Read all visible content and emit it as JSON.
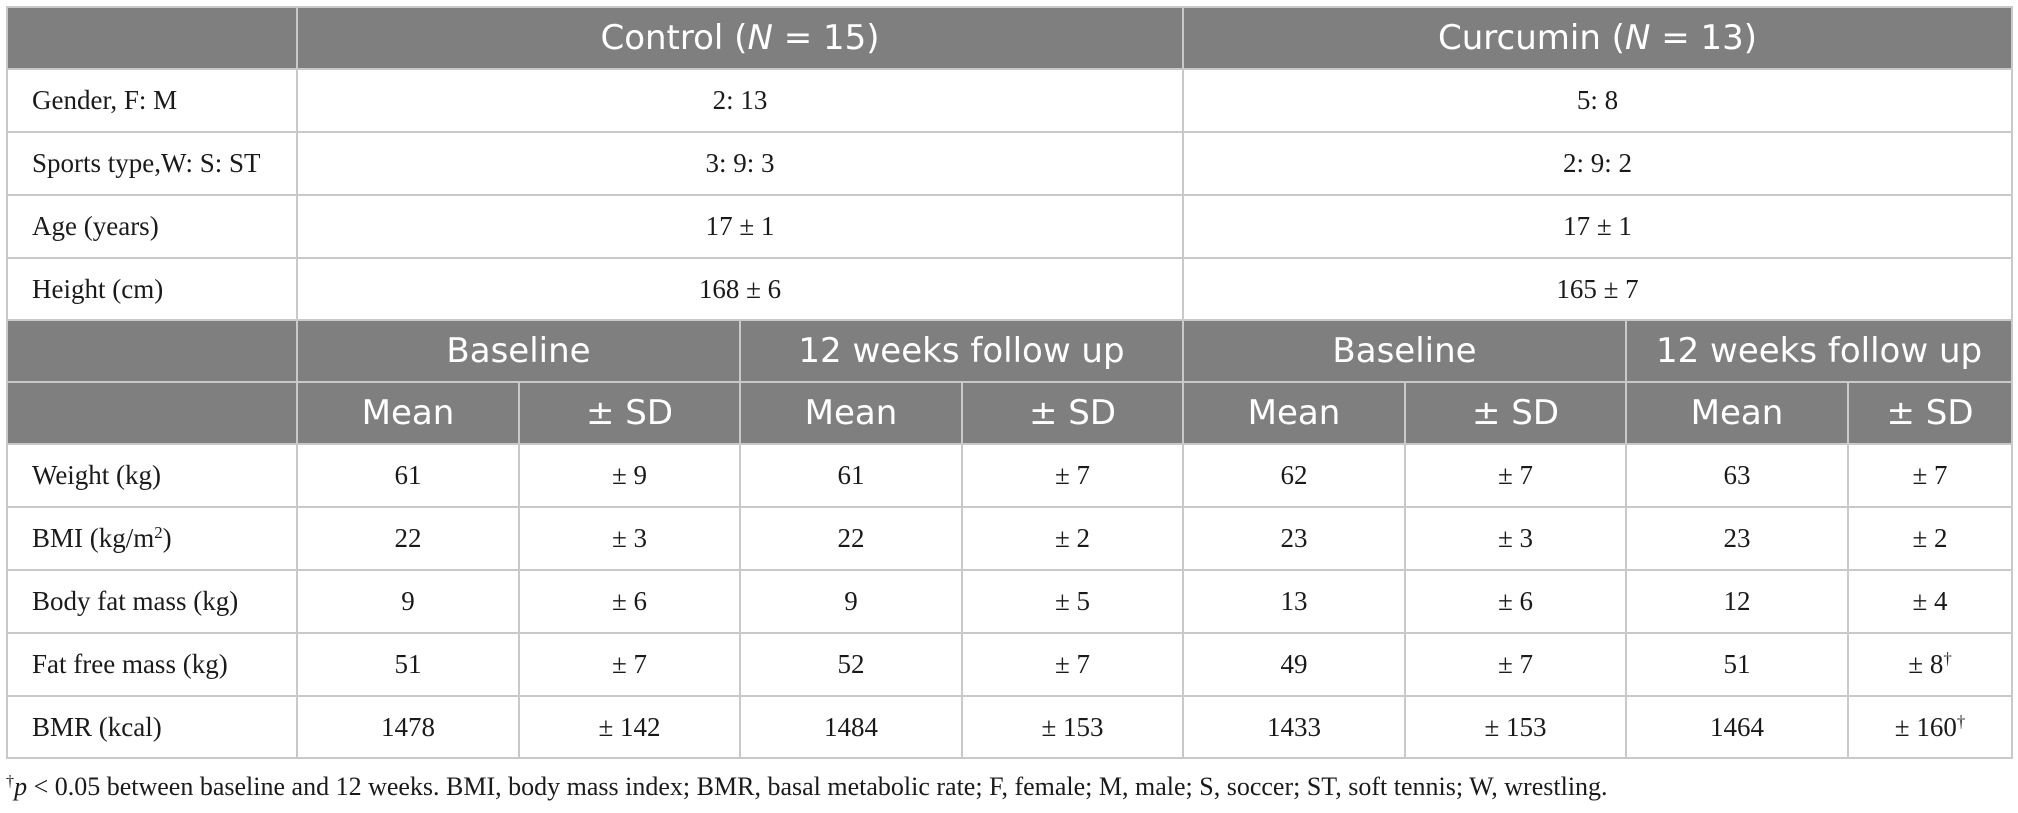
{
  "groups": {
    "control": {
      "name": "Control (",
      "n_label": "N",
      "n_value": " = 15)"
    },
    "curcumin": {
      "name": "Curcumin (",
      "n_label": "N",
      "n_value": " = 13)"
    }
  },
  "demographics": [
    {
      "label": "Gender, F: M",
      "control": "2: 13",
      "curcumin": "5: 8"
    },
    {
      "label": "Sports type,W: S: ST",
      "control": "3: 9: 3",
      "curcumin": "2: 9: 2"
    },
    {
      "label": "Age (years)",
      "control": "17 ± 1",
      "curcumin": "17 ± 1"
    },
    {
      "label": "Height (cm)",
      "control": "168 ± 6",
      "curcumin": "165 ± 7"
    }
  ],
  "timepoints": {
    "baseline": "Baseline",
    "followup": "12 weeks follow up"
  },
  "stats": {
    "mean": "Mean",
    "sd": "± SD"
  },
  "measures": [
    {
      "label": "Weight (kg)",
      "label_sup": "",
      "label_after": "",
      "values": [
        "61",
        "± 9",
        "61",
        "± 7",
        "62",
        "± 7",
        "63",
        "± 7"
      ]
    },
    {
      "label": "BMI (kg/m",
      "label_sup": "2",
      "label_after": ")",
      "values": [
        "22",
        "± 3",
        "22",
        "± 2",
        "23",
        "± 3",
        "23",
        "± 2"
      ]
    },
    {
      "label": "Body fat mass (kg)",
      "label_sup": "",
      "label_after": "",
      "values": [
        "9",
        "± 6",
        "9",
        "± 5",
        "13",
        "± 6",
        "12",
        "± 4"
      ]
    },
    {
      "label": "Fat free mass (kg)",
      "label_sup": "",
      "label_after": "",
      "values": [
        "51",
        "± 7",
        "52",
        "± 7",
        "49",
        "± 7",
        "51",
        "± 8"
      ]
    },
    {
      "label": "BMR (kcal)",
      "label_sup": "",
      "label_after": "",
      "values": [
        "1478",
        "± 142",
        "1484",
        "± 153",
        "1433",
        "± 153",
        "1464",
        "± 160"
      ]
    }
  ],
  "footnote": {
    "symbol": "†",
    "p_var": "p",
    "text": " < 0.05 between baseline and 12 weeks. BMI, body mass index; BMR, basal metabolic rate; F, female; M, male; S, soccer; ST, soft tennis; W, wrestling."
  }
}
